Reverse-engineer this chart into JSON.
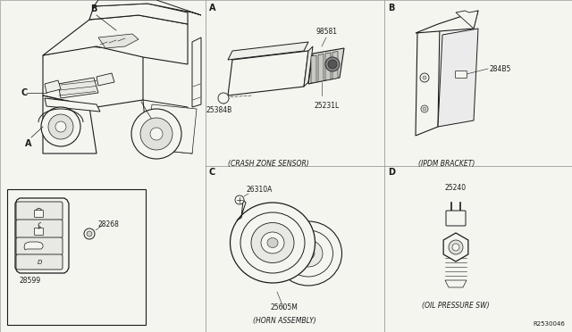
{
  "bg_color": "#f5f5f0",
  "line_color": "#1a1a1a",
  "diagram_ref": "R2530046",
  "section_A_title": "(CRASH ZONE SENSOR)",
  "section_B_title": "(IPDΜ BRACKET)",
  "section_C_title": "(HORN ASSEMBLY)",
  "section_D_title": "(OIL PRESSURE SW)",
  "part_98581": "98581",
  "part_25384B": "25384B",
  "part_25231L": "25231L",
  "part_284B5": "284B5",
  "part_26310A": "26310A",
  "part_25605M": "25605M",
  "part_25240": "25240",
  "part_28268": "28268",
  "part_28599": "28599",
  "label_A": "A",
  "label_B": "B",
  "label_C": "C",
  "label_D": "D",
  "div_color": "#999999",
  "fs_label": 7,
  "fs_part": 5.5,
  "fs_title": 5.5
}
